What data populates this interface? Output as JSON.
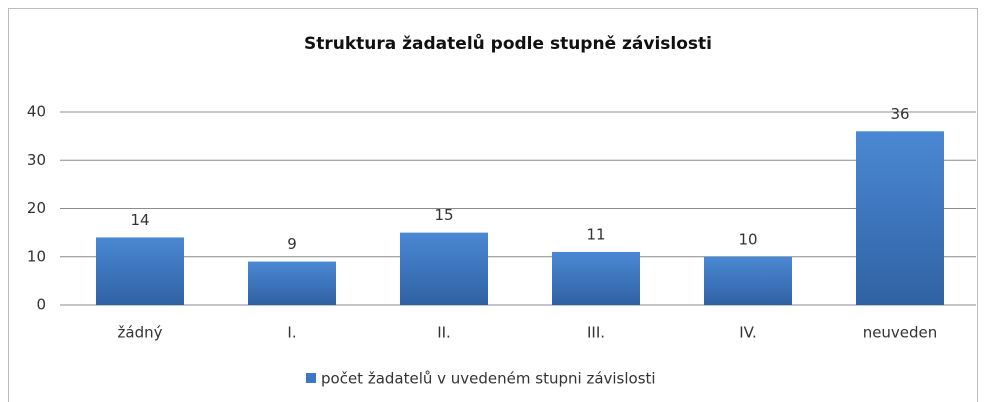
{
  "chart_data": {
    "type": "bar",
    "title": "Struktura žadatelů podle stupně závislosti",
    "categories": [
      "žádný",
      "I.",
      "II.",
      "III.",
      "IV.",
      "neuveden"
    ],
    "series": [
      {
        "name": "počet žadatelů v uvedeném stupni závislosti",
        "color": "#3c78c3",
        "values": [
          14,
          9,
          15,
          11,
          10,
          36
        ]
      }
    ],
    "ylim": [
      0,
      40
    ],
    "yticks": [
      0,
      10,
      20,
      30,
      40
    ],
    "grid": true,
    "legend": "bottom",
    "data_labels": true
  }
}
